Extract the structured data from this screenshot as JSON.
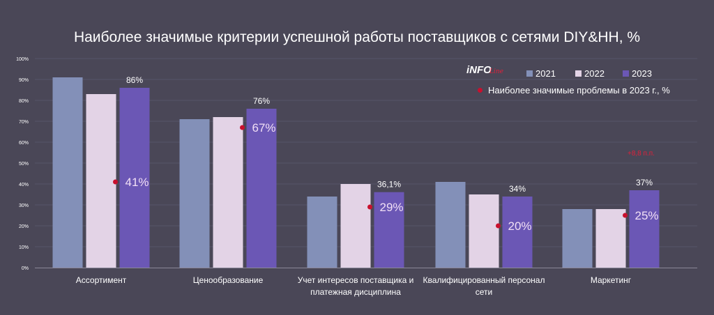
{
  "title": "Наиболее значимые критерии успешной работы поставщиков с сетями DIY&HH, %",
  "logo": {
    "main": "iNFO",
    "sub": "Line"
  },
  "legend": {
    "problem_label": "Наиболее значимые проблемы в 2023 г., %"
  },
  "annotation": {
    "delta": "+8,8 п.п."
  },
  "colors": {
    "background": "#4a4757",
    "s2021": "#8390b8",
    "s2022": "#e3d3e6",
    "s2023": "#6b57b5",
    "problem_dot": "#c8102e",
    "delta": "#e0203a"
  },
  "chart_data": {
    "type": "bar",
    "title": "Наиболее значимые критерии успешной работы поставщиков с сетями DIY&HH, %",
    "categories": [
      [
        "Ассортимент"
      ],
      [
        "Ценообразование"
      ],
      [
        "Учет интересов поставщика и",
        "платежная дисциплина"
      ],
      [
        "Квалифицированный персонал",
        "сети"
      ],
      [
        "Маркетинг"
      ]
    ],
    "series": [
      {
        "name": "2021",
        "values": [
          91,
          71,
          34,
          41,
          28
        ],
        "labels": [
          "",
          "",
          "",
          "",
          ""
        ]
      },
      {
        "name": "2022",
        "values": [
          83,
          72,
          40,
          35,
          28
        ],
        "labels": [
          "",
          "",
          "",
          "",
          ""
        ]
      },
      {
        "name": "2023",
        "values": [
          86,
          76,
          36.1,
          34,
          37
        ],
        "labels": [
          "86%",
          "76%",
          "36,1%",
          "34%",
          "37%"
        ]
      }
    ],
    "problems_2023": {
      "name": "Наиболее значимые проблемы в 2023 г., %",
      "values": [
        41,
        67,
        29,
        20,
        25
      ],
      "labels": [
        "41%",
        "67%",
        "29%",
        "20%",
        "25%"
      ]
    },
    "yticks": [
      "0%",
      "10%",
      "20%",
      "30%",
      "40%",
      "50%",
      "60%",
      "70%",
      "80%",
      "90%",
      "100%"
    ],
    "ylim": [
      0,
      100
    ],
    "grid": true,
    "legend_position": "top-right"
  }
}
